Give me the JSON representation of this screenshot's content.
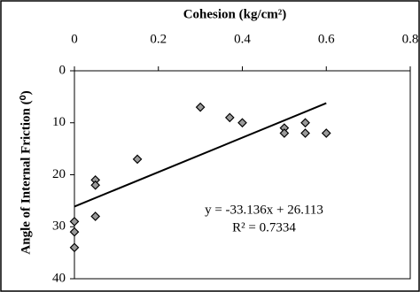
{
  "chart_data": {
    "type": "scatter",
    "x_label": "Cohesion (kg/cm²)",
    "y_label": "Angle of Internal Friction (⁰)",
    "x": [
      0,
      0,
      0,
      0.05,
      0.05,
      0.05,
      0.15,
      0.3,
      0.37,
      0.4,
      0.5,
      0.5,
      0.55,
      0.55,
      0.6
    ],
    "values": [
      29,
      31,
      34,
      21,
      22,
      28,
      17,
      7,
      9,
      10,
      11,
      12,
      10,
      12,
      12
    ],
    "color": "#9a9a9a",
    "xlim": [
      0,
      0.8
    ],
    "xticks": [
      0,
      0.2,
      0.4,
      0.6,
      0.8
    ],
    "ylim": [
      0,
      40
    ],
    "yticks": [
      0,
      10,
      20,
      30,
      40
    ],
    "y_inverted": true,
    "x_axis_position": "top",
    "trendline": {
      "slope": -33.136,
      "intercept": 26.113,
      "label": "y = -33.136x + 26.113",
      "r2_label": "R² = 0.7334"
    }
  }
}
